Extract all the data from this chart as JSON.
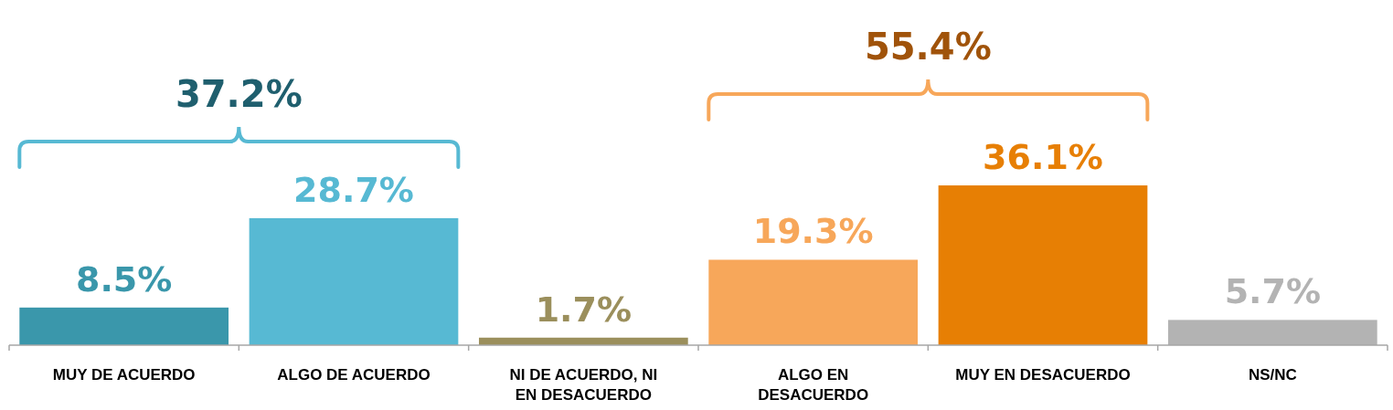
{
  "chart_data": {
    "type": "bar",
    "categories": [
      "MUY DE ACUERDO",
      "ALGO DE ACUERDO",
      "NI DE ACUERDO, NI EN DESACUERDO",
      "ALGO EN DESACUERDO",
      "MUY EN DESACUERDO",
      "NS/NC"
    ],
    "values": [
      8.5,
      28.7,
      1.7,
      19.3,
      36.1,
      5.7
    ],
    "colors": [
      "#3a97ab",
      "#57b9d3",
      "#9b8f5c",
      "#f7a75a",
      "#e77f04",
      "#b3b3b3"
    ],
    "value_labels": [
      "8.5%",
      "28.7%",
      "1.7%",
      "19.3%",
      "36.1%",
      "5.7%"
    ],
    "ylim": [
      0,
      78
    ],
    "tick_labels": "x",
    "annotations": [
      "37.2%",
      "55.4%"
    ]
  }
}
